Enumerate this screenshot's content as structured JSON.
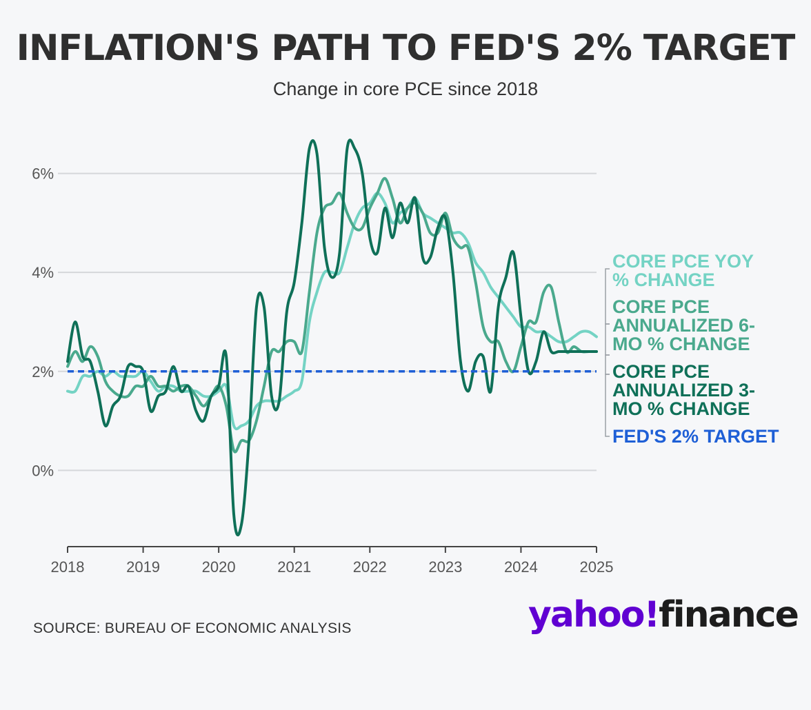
{
  "chart_data": {
    "type": "line",
    "title": "INFLATION'S PATH TO FED'S 2% TARGET",
    "subtitle": "Change in core PCE since 2018",
    "source": "SOURCE: BUREAU OF ECONOMIC ANALYSIS",
    "x_ticks": [
      "2018",
      "2019",
      "2020",
      "2021",
      "2022",
      "2023",
      "2024",
      "2025"
    ],
    "y_ticks": [
      "0%",
      "2%",
      "4%",
      "6%"
    ],
    "y_tick_values": [
      0,
      2,
      4,
      6
    ],
    "xlim": [
      2018,
      2025
    ],
    "ylim": [
      -1.5,
      6.9
    ],
    "grid": true,
    "legend_placement": "right",
    "series": [
      {
        "name": "CORE PCE YOY % CHANGE",
        "color": "#74d3c4",
        "x": [
          2018.0,
          2018.1,
          2018.2,
          2018.3,
          2018.4,
          2018.5,
          2018.6,
          2018.7,
          2018.8,
          2018.9,
          2019.0,
          2019.1,
          2019.2,
          2019.3,
          2019.4,
          2019.5,
          2019.6,
          2019.7,
          2019.8,
          2019.9,
          2020.0,
          2020.1,
          2020.2,
          2020.3,
          2020.4,
          2020.5,
          2020.6,
          2020.7,
          2020.8,
          2020.9,
          2021.0,
          2021.1,
          2021.2,
          2021.3,
          2021.4,
          2021.5,
          2021.6,
          2021.7,
          2021.8,
          2021.9,
          2022.0,
          2022.1,
          2022.2,
          2022.3,
          2022.4,
          2022.5,
          2022.6,
          2022.7,
          2022.8,
          2022.9,
          2023.0,
          2023.1,
          2023.2,
          2023.3,
          2023.4,
          2023.5,
          2023.6,
          2023.7,
          2023.8,
          2023.9,
          2024.0,
          2024.1,
          2024.2,
          2024.3,
          2024.4,
          2024.5,
          2024.6,
          2024.7,
          2024.8,
          2024.9,
          2025.0
        ],
        "values": [
          1.6,
          1.6,
          1.9,
          1.9,
          2.0,
          1.9,
          2.0,
          1.9,
          1.9,
          1.9,
          2.0,
          1.8,
          1.6,
          1.7,
          1.7,
          1.6,
          1.6,
          1.6,
          1.5,
          1.5,
          1.6,
          1.7,
          0.9,
          0.9,
          1.0,
          1.3,
          1.4,
          1.4,
          1.4,
          1.5,
          1.6,
          1.8,
          3.0,
          3.6,
          4.0,
          4.0,
          4.0,
          4.5,
          5.0,
          5.3,
          5.4,
          5.6,
          5.4,
          5.0,
          5.2,
          5.3,
          5.5,
          5.2,
          5.1,
          5.0,
          4.9,
          4.8,
          4.8,
          4.6,
          4.2,
          4.0,
          3.7,
          3.5,
          3.3,
          3.1,
          2.9,
          2.9,
          2.8,
          2.8,
          2.7,
          2.6,
          2.6,
          2.7,
          2.8,
          2.8,
          2.7
        ]
      },
      {
        "name": "CORE PCE ANNUALIZED 6-MO % CHANGE",
        "color": "#4aa98d",
        "x": [
          2018.0,
          2018.1,
          2018.2,
          2018.3,
          2018.4,
          2018.5,
          2018.6,
          2018.7,
          2018.8,
          2018.9,
          2019.0,
          2019.1,
          2019.2,
          2019.3,
          2019.4,
          2019.5,
          2019.6,
          2019.7,
          2019.8,
          2019.9,
          2020.0,
          2020.1,
          2020.2,
          2020.3,
          2020.4,
          2020.5,
          2020.6,
          2020.7,
          2020.8,
          2020.9,
          2021.0,
          2021.1,
          2021.2,
          2021.3,
          2021.4,
          2021.5,
          2021.6,
          2021.7,
          2021.8,
          2021.9,
          2022.0,
          2022.1,
          2022.2,
          2022.3,
          2022.4,
          2022.5,
          2022.6,
          2022.7,
          2022.8,
          2022.9,
          2023.0,
          2023.1,
          2023.2,
          2023.3,
          2023.4,
          2023.5,
          2023.6,
          2023.7,
          2023.8,
          2023.9,
          2024.0,
          2024.1,
          2024.2,
          2024.3,
          2024.4,
          2024.5,
          2024.6,
          2024.7,
          2024.8,
          2024.9,
          2025.0
        ],
        "values": [
          2.1,
          2.4,
          2.2,
          2.5,
          2.3,
          1.8,
          1.6,
          1.5,
          1.5,
          1.7,
          1.7,
          1.9,
          1.7,
          1.7,
          1.6,
          1.7,
          1.7,
          1.5,
          1.3,
          1.5,
          1.7,
          1.3,
          0.4,
          0.6,
          0.6,
          1.0,
          1.7,
          2.4,
          2.4,
          2.6,
          2.6,
          2.4,
          3.6,
          4.8,
          5.3,
          5.4,
          5.6,
          5.2,
          4.9,
          4.9,
          5.3,
          5.6,
          5.9,
          5.5,
          5.0,
          5.3,
          5.4,
          5.2,
          4.8,
          4.8,
          5.2,
          4.7,
          4.5,
          4.5,
          3.8,
          2.9,
          2.6,
          2.6,
          2.2,
          2.0,
          2.5,
          3.0,
          3.0,
          3.6,
          3.7,
          3.0,
          2.4,
          2.5,
          2.4,
          2.4,
          2.4
        ]
      },
      {
        "name": "CORE PCE ANNUALIZED 3-MO % CHANGE",
        "color": "#0f7058",
        "x": [
          2018.0,
          2018.1,
          2018.2,
          2018.3,
          2018.4,
          2018.5,
          2018.6,
          2018.7,
          2018.8,
          2018.9,
          2019.0,
          2019.1,
          2019.2,
          2019.3,
          2019.4,
          2019.5,
          2019.6,
          2019.7,
          2019.8,
          2019.9,
          2020.0,
          2020.1,
          2020.2,
          2020.3,
          2020.4,
          2020.5,
          2020.6,
          2020.7,
          2020.8,
          2020.9,
          2021.0,
          2021.1,
          2021.2,
          2021.3,
          2021.4,
          2021.5,
          2021.6,
          2021.7,
          2021.8,
          2021.9,
          2022.0,
          2022.1,
          2022.2,
          2022.3,
          2022.4,
          2022.5,
          2022.6,
          2022.7,
          2022.8,
          2022.9,
          2023.0,
          2023.1,
          2023.2,
          2023.3,
          2023.4,
          2023.5,
          2023.6,
          2023.7,
          2023.8,
          2023.9,
          2024.0,
          2024.1,
          2024.2,
          2024.3,
          2024.4,
          2024.5,
          2024.6,
          2024.7,
          2024.8,
          2024.9,
          2025.0
        ],
        "values": [
          2.2,
          3.0,
          2.3,
          2.2,
          1.6,
          0.9,
          1.3,
          1.5,
          2.1,
          2.1,
          2.0,
          1.2,
          1.5,
          1.6,
          2.1,
          1.6,
          1.7,
          1.2,
          1.0,
          1.5,
          1.7,
          2.3,
          -0.9,
          -1.1,
          0.6,
          3.3,
          3.3,
          1.5,
          1.4,
          3.2,
          3.8,
          5.0,
          6.5,
          6.4,
          4.5,
          3.9,
          4.4,
          6.5,
          6.5,
          6.0,
          4.7,
          4.4,
          5.3,
          4.7,
          5.4,
          5.0,
          5.5,
          4.3,
          4.3,
          4.9,
          5.1,
          4.0,
          2.2,
          1.6,
          2.2,
          2.3,
          1.6,
          3.3,
          3.9,
          4.4,
          3.1,
          2.0,
          2.2,
          2.8,
          2.4,
          2.4,
          2.4,
          2.4,
          2.4,
          2.4,
          2.4
        ]
      },
      {
        "name": "FED'S 2% TARGET",
        "color": "#1e5fd6",
        "style": "dashed",
        "x": [
          2018.0,
          2025.0
        ],
        "values": [
          2.0,
          2.0
        ]
      }
    ]
  },
  "logo": {
    "brand": "yahoo!",
    "product": "finance"
  }
}
